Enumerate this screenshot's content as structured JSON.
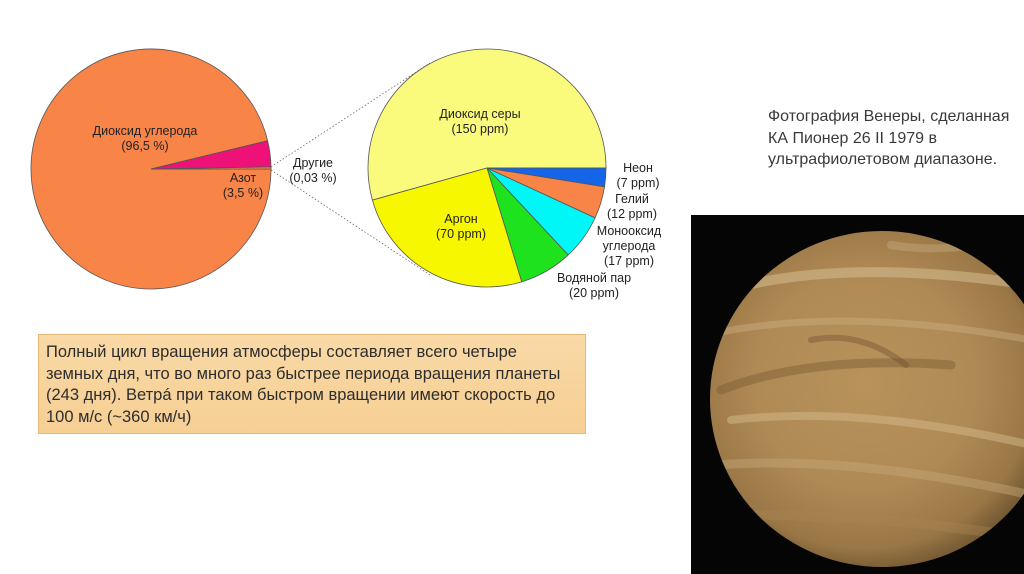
{
  "chart_data": [
    {
      "type": "pie",
      "slices": [
        {
          "label": "Диоксид углерода",
          "value_text": "(96,5 %)",
          "value": 96.5,
          "color": "#f98448"
        },
        {
          "label": "Азот",
          "value_text": "(3,5 %)",
          "value": 3.5,
          "color": "#ee1278"
        },
        {
          "label": "Другие",
          "value_text": "(0,03 %)",
          "value": 0.03,
          "color": "#f98448"
        }
      ]
    },
    {
      "type": "pie",
      "slices": [
        {
          "label": "Диоксид серы",
          "value_text": "(150 ppm)",
          "value": 150,
          "color": "#fafa7d"
        },
        {
          "label": "Неон",
          "value_text": "(7 ppm)",
          "value": 7,
          "color": "#1565e8"
        },
        {
          "label": "Гелий",
          "value_text": "(12 ppm)",
          "value": 12,
          "color": "#f98448"
        },
        {
          "label": "Монооксид углерода",
          "label_lines": [
            "Монооксид",
            "углерода"
          ],
          "value_text": "(17 ppm)",
          "value": 17,
          "color": "#00f7f7"
        },
        {
          "label": "Водяной пар",
          "value_text": "(20 ppm)",
          "value": 20,
          "color": "#1fe21f"
        },
        {
          "label": "Аргон",
          "value_text": "(70 ppm)",
          "value": 70,
          "color": "#f7f700"
        }
      ]
    }
  ],
  "info_text": "Полный цикл вращения атмосферы составляет всего четыре земных дня, что во много раз быстрее периода вращения планеты (243 дня). Ветрá при таком быстром вращении имеют скорость до 100 м/с (~360 км/ч)",
  "caption": "Фотография Венеры, сделанная КА Пионер 26 II 1979 в ультрафиолетовом диапазоне."
}
